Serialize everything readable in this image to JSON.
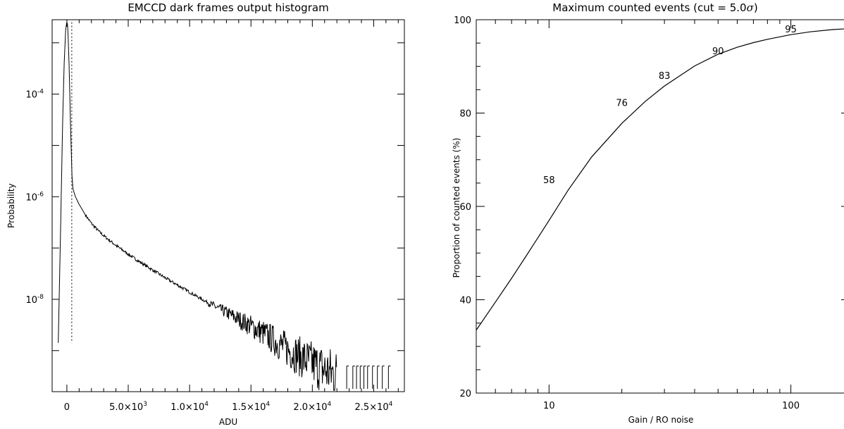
{
  "chart_data": [
    {
      "type": "line",
      "title": "EMCCD dark frames output histogram",
      "xlabel": "ADU",
      "ylabel": "Probability",
      "xlim": [
        -1200,
        27500
      ],
      "ylim_log10": [
        -9.8,
        -2.55
      ],
      "y_scale": "log",
      "x_ticks": [
        {
          "value": 0,
          "label": "0"
        },
        {
          "value": 5000,
          "label": "5.0×10",
          "exp": "3"
        },
        {
          "value": 10000,
          "label": "1.0×10",
          "exp": "4"
        },
        {
          "value": 15000,
          "label": "1.5×10",
          "exp": "4"
        },
        {
          "value": 20000,
          "label": "2.0×10",
          "exp": "4"
        },
        {
          "value": 25000,
          "label": "2.5×10",
          "exp": "4"
        }
      ],
      "y_ticks": [
        {
          "log10": -4,
          "label": "10",
          "exp": "-4"
        },
        {
          "log10": -6,
          "label": "10",
          "exp": "-6"
        },
        {
          "log10": -8,
          "label": "10",
          "exp": "-8"
        }
      ],
      "series": [
        {
          "style": "solid",
          "points_log10": [
            [
              -700,
              -8.85
            ],
            [
              -500,
              -6.5
            ],
            [
              -350,
              -4.6
            ],
            [
              -220,
              -3.4
            ],
            [
              -100,
              -2.75
            ],
            [
              0,
              -2.58
            ],
            [
              80,
              -2.7
            ],
            [
              180,
              -3.4
            ],
            [
              300,
              -4.6
            ],
            [
              420,
              -5.6
            ],
            [
              500,
              -5.85
            ],
            [
              700,
              -6.0
            ],
            [
              1000,
              -6.15
            ],
            [
              1500,
              -6.35
            ],
            [
              2000,
              -6.52
            ],
            [
              2500,
              -6.65
            ],
            [
              3000,
              -6.76
            ],
            [
              4000,
              -6.95
            ],
            [
              5000,
              -7.12
            ],
            [
              6000,
              -7.28
            ],
            [
              7000,
              -7.43
            ],
            [
              8000,
              -7.58
            ],
            [
              9000,
              -7.72
            ],
            [
              10000,
              -7.86
            ],
            [
              11000,
              -8.0
            ],
            [
              12000,
              -8.13
            ],
            [
              13000,
              -8.26
            ],
            [
              14000,
              -8.39
            ],
            [
              15000,
              -8.52
            ],
            [
              16000,
              -8.66
            ],
            [
              17000,
              -8.82
            ],
            [
              18000,
              -8.98
            ],
            [
              19000,
              -9.12
            ],
            [
              20000,
              -9.25
            ],
            [
              21000,
              -9.38
            ],
            [
              22000,
              -9.48
            ]
          ],
          "sparse_points_log10": [
            [
              22800,
              -9.3
            ],
            [
              23300,
              -9.3
            ],
            [
              23600,
              -9.3
            ],
            [
              23900,
              -9.3
            ],
            [
              24200,
              -9.3
            ],
            [
              24500,
              -9.3
            ],
            [
              24900,
              -9.3
            ],
            [
              25300,
              -9.3
            ],
            [
              25700,
              -9.3
            ],
            [
              26200,
              -9.3
            ]
          ],
          "noise_from_x": 11500
        },
        {
          "style": "dotted",
          "x": 400,
          "y_range_log10": [
            -8.85,
            -2.6
          ]
        }
      ]
    },
    {
      "type": "line",
      "title": "Maximum counted events (cut = 5.0",
      "title_symbol": "σ",
      "title_suffix": ")",
      "xlabel": "Gain / RO noise",
      "ylabel": "Proportion of counted events (%)",
      "x_scale": "log",
      "xlim": [
        5,
        175
      ],
      "ylim": [
        20,
        100
      ],
      "x_ticks": [
        {
          "value": 10,
          "label": "10"
        },
        {
          "value": 100,
          "label": "100"
        }
      ],
      "y_ticks": [
        {
          "value": 20,
          "label": "20"
        },
        {
          "value": 40,
          "label": "40"
        },
        {
          "value": 60,
          "label": "60"
        },
        {
          "value": 80,
          "label": "80"
        },
        {
          "value": 100,
          "label": "100"
        }
      ],
      "series": [
        {
          "x": [
            5,
            6,
            7,
            8,
            9,
            10,
            12,
            15,
            20,
            25,
            30,
            40,
            50,
            60,
            70,
            80,
            100,
            120,
            150,
            175
          ],
          "y": [
            33.5,
            39.5,
            44.6,
            49.2,
            53.3,
            57.0,
            63.5,
            70.6,
            77.8,
            82.5,
            85.8,
            90.1,
            92.6,
            94.1,
            95.1,
            95.8,
            96.8,
            97.4,
            97.9,
            98.1
          ]
        }
      ],
      "annotations": [
        {
          "text": "58",
          "x": 10,
          "y": 65
        },
        {
          "text": "76",
          "x": 20,
          "y": 81.5
        },
        {
          "text": "83",
          "x": 30,
          "y": 87.3
        },
        {
          "text": "90",
          "x": 50,
          "y": 92.6
        },
        {
          "text": "95",
          "x": 100,
          "y": 97.3
        }
      ]
    }
  ]
}
